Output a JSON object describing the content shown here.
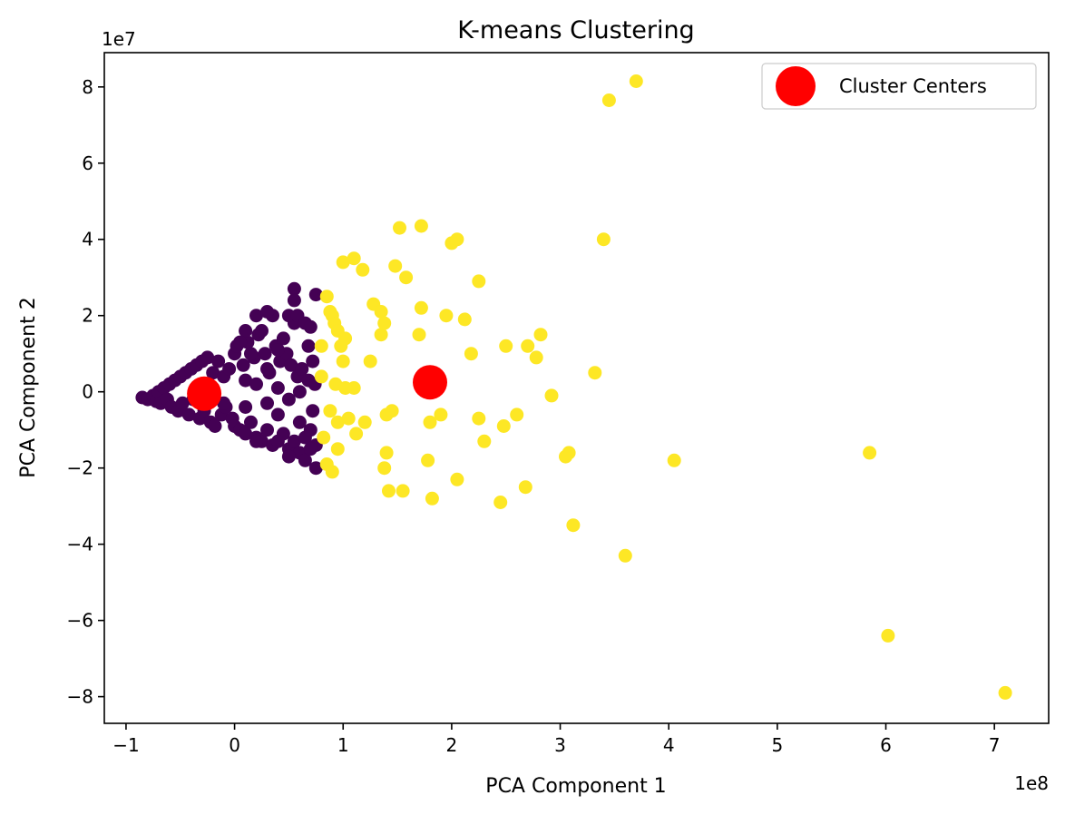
{
  "chart_data": {
    "type": "scatter",
    "title": "K-means Clustering",
    "xlabel": "PCA Component 1",
    "ylabel": "PCA Component 2",
    "x_offset_label": "1e8",
    "y_offset_label": "1e7",
    "xlim": [
      -1.2,
      7.5
    ],
    "ylim": [
      -8.7,
      8.9
    ],
    "x_ticks": [
      -1,
      0,
      1,
      2,
      3,
      4,
      5,
      6,
      7
    ],
    "x_tick_labels": [
      "−1",
      "0",
      "1",
      "2",
      "3",
      "4",
      "5",
      "6",
      "7"
    ],
    "y_ticks": [
      -8,
      -6,
      -4,
      -2,
      0,
      2,
      4,
      6,
      8
    ],
    "y_tick_labels": [
      "−8",
      "−6",
      "−4",
      "−2",
      "0",
      "2",
      "4",
      "6",
      "8"
    ],
    "grid": false,
    "legend": {
      "position": "top-right",
      "entries": [
        "Cluster Centers"
      ]
    },
    "series": [
      {
        "color": "#440154",
        "points": [
          [
            -0.85,
            -0.15
          ],
          [
            -0.8,
            -0.2
          ],
          [
            -0.75,
            -0.1
          ],
          [
            -0.72,
            -0.25
          ],
          [
            -0.7,
            0.0
          ],
          [
            -0.68,
            -0.3
          ],
          [
            -0.65,
            0.1
          ],
          [
            -0.62,
            -0.2
          ],
          [
            -0.6,
            0.2
          ],
          [
            -0.58,
            -0.4
          ],
          [
            -0.55,
            0.3
          ],
          [
            -0.52,
            -0.5
          ],
          [
            -0.5,
            0.4
          ],
          [
            -0.48,
            -0.3
          ],
          [
            -0.45,
            0.5
          ],
          [
            -0.42,
            -0.6
          ],
          [
            -0.4,
            0.6
          ],
          [
            -0.38,
            -0.2
          ],
          [
            -0.35,
            0.7
          ],
          [
            -0.32,
            -0.7
          ],
          [
            -0.3,
            0.8
          ],
          [
            -0.28,
            -0.5
          ],
          [
            -0.25,
            0.9
          ],
          [
            -0.22,
            -0.8
          ],
          [
            -0.2,
            0.5
          ],
          [
            -0.18,
            -0.9
          ],
          [
            -0.15,
            0.8
          ],
          [
            -0.12,
            -0.6
          ],
          [
            -0.1,
            0.4
          ],
          [
            -0.08,
            -0.4
          ],
          [
            -0.05,
            0.6
          ],
          [
            -0.02,
            -0.7
          ],
          [
            0.0,
            1.0
          ],
          [
            0.0,
            -0.9
          ],
          [
            0.02,
            1.2
          ],
          [
            0.05,
            -1.0
          ],
          [
            0.08,
            0.7
          ],
          [
            0.1,
            -1.1
          ],
          [
            0.12,
            1.3
          ],
          [
            0.15,
            -0.8
          ],
          [
            0.18,
            0.9
          ],
          [
            0.2,
            -1.2
          ],
          [
            0.22,
            1.5
          ],
          [
            0.25,
            -1.3
          ],
          [
            0.28,
            1.0
          ],
          [
            0.3,
            -1.0
          ],
          [
            0.32,
            0.5
          ],
          [
            0.35,
            -1.4
          ],
          [
            0.38,
            1.2
          ],
          [
            0.4,
            -0.6
          ],
          [
            0.42,
            0.8
          ],
          [
            0.45,
            -1.1
          ],
          [
            0.48,
            1.0
          ],
          [
            0.5,
            -1.5
          ],
          [
            0.52,
            0.7
          ],
          [
            0.55,
            -1.3
          ],
          [
            0.58,
            0.4
          ],
          [
            0.6,
            -1.6
          ],
          [
            0.62,
            0.6
          ],
          [
            0.65,
            -1.2
          ],
          [
            0.68,
            0.3
          ],
          [
            0.7,
            -1.0
          ],
          [
            0.72,
            -0.5
          ],
          [
            0.74,
            0.2
          ],
          [
            0.75,
            -1.4
          ],
          [
            0.1,
            0.3
          ],
          [
            0.2,
            0.2
          ],
          [
            0.3,
            -0.3
          ],
          [
            0.4,
            0.1
          ],
          [
            0.5,
            -0.2
          ],
          [
            0.6,
            0.0
          ],
          [
            0.15,
            1.0
          ],
          [
            0.25,
            1.6
          ],
          [
            0.35,
            2.0
          ],
          [
            0.45,
            1.4
          ],
          [
            0.55,
            1.8
          ],
          [
            0.2,
            2.0
          ],
          [
            0.3,
            2.1
          ],
          [
            0.4,
            1.1
          ],
          [
            0.5,
            2.0
          ],
          [
            0.55,
            2.7
          ],
          [
            0.55,
            2.4
          ],
          [
            0.58,
            2.0
          ],
          [
            0.65,
            1.8
          ],
          [
            0.7,
            1.7
          ],
          [
            0.68,
            1.2
          ],
          [
            0.75,
            2.55
          ],
          [
            0.72,
            0.8
          ],
          [
            0.1,
            1.6
          ],
          [
            0.05,
            1.3
          ],
          [
            -0.1,
            -0.3
          ],
          [
            -0.2,
            0.1
          ],
          [
            -0.3,
            0.2
          ],
          [
            0.6,
            -0.8
          ],
          [
            0.65,
            -1.8
          ],
          [
            0.75,
            -2.0
          ],
          [
            0.7,
            -1.5
          ],
          [
            0.5,
            -1.7
          ],
          [
            0.4,
            -1.3
          ],
          [
            0.2,
            -1.3
          ],
          [
            0.1,
            -0.4
          ],
          [
            0.3,
            0.6
          ]
        ]
      },
      {
        "color": "#fde725",
        "points": [
          [
            0.8,
            1.2
          ],
          [
            0.8,
            0.4
          ],
          [
            0.82,
            -1.2
          ],
          [
            0.85,
            2.5
          ],
          [
            0.85,
            -1.9
          ],
          [
            0.88,
            -0.5
          ],
          [
            0.9,
            2.0
          ],
          [
            0.9,
            -2.1
          ],
          [
            0.92,
            1.8
          ],
          [
            0.93,
            0.2
          ],
          [
            0.95,
            1.6
          ],
          [
            0.95,
            -0.8
          ],
          [
            0.98,
            1.2
          ],
          [
            1.0,
            3.4
          ],
          [
            1.0,
            0.8
          ],
          [
            1.02,
            1.4
          ],
          [
            1.05,
            -0.7
          ],
          [
            1.1,
            0.1
          ],
          [
            1.1,
            3.5
          ],
          [
            1.12,
            -1.1
          ],
          [
            1.18,
            3.2
          ],
          [
            1.2,
            -0.8
          ],
          [
            1.25,
            0.8
          ],
          [
            1.28,
            2.3
          ],
          [
            1.35,
            2.1
          ],
          [
            1.35,
            1.5
          ],
          [
            1.38,
            1.8
          ],
          [
            1.4,
            -0.6
          ],
          [
            1.4,
            -1.6
          ],
          [
            1.42,
            -2.6
          ],
          [
            1.48,
            3.3
          ],
          [
            1.52,
            4.3
          ],
          [
            1.55,
            -2.6
          ],
          [
            1.58,
            3.0
          ],
          [
            1.7,
            1.5
          ],
          [
            1.72,
            4.35
          ],
          [
            1.72,
            2.2
          ],
          [
            1.78,
            -1.8
          ],
          [
            1.8,
            -0.8
          ],
          [
            1.82,
            -2.8
          ],
          [
            1.9,
            -0.6
          ],
          [
            1.95,
            2.0
          ],
          [
            2.0,
            3.9
          ],
          [
            2.05,
            4.0
          ],
          [
            2.05,
            -2.3
          ],
          [
            2.12,
            1.9
          ],
          [
            2.18,
            1.0
          ],
          [
            2.25,
            2.9
          ],
          [
            2.25,
            -0.7
          ],
          [
            2.3,
            -1.3
          ],
          [
            2.45,
            -2.9
          ],
          [
            2.48,
            -0.9
          ],
          [
            2.5,
            1.2
          ],
          [
            2.6,
            -0.6
          ],
          [
            2.68,
            -2.5
          ],
          [
            2.7,
            1.2
          ],
          [
            2.78,
            0.9
          ],
          [
            2.82,
            1.5
          ],
          [
            2.92,
            -0.1
          ],
          [
            3.05,
            -1.7
          ],
          [
            3.08,
            -1.6
          ],
          [
            3.12,
            -3.5
          ],
          [
            3.32,
            0.5
          ],
          [
            3.4,
            4.0
          ],
          [
            3.45,
            7.65
          ],
          [
            3.6,
            -4.3
          ],
          [
            3.7,
            8.15
          ],
          [
            4.05,
            -1.8
          ],
          [
            5.85,
            -1.6
          ],
          [
            6.02,
            -6.4
          ],
          [
            7.1,
            -7.9
          ],
          [
            0.88,
            2.1
          ],
          [
            0.95,
            -1.5
          ],
          [
            1.02,
            0.1
          ],
          [
            1.38,
            -2.0
          ],
          [
            1.45,
            -0.5
          ]
        ]
      }
    ],
    "cluster_centers": {
      "label": "Cluster Centers",
      "color": "#ff0000",
      "points": [
        [
          -0.28,
          -0.05
        ],
        [
          1.8,
          0.25
        ]
      ]
    }
  }
}
